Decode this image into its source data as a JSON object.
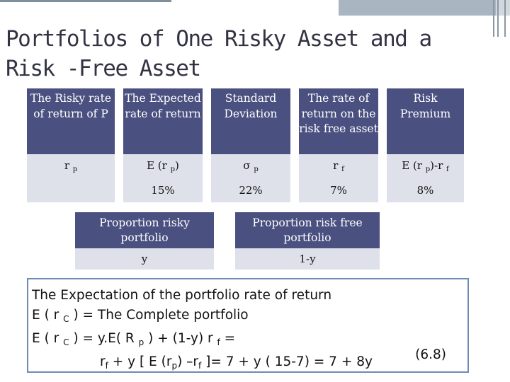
{
  "title": "Portfolios of One Risky Asset and a Risk -Free Asset",
  "top_table": {
    "headers": [
      "The Risky rate of return of P",
      "The Expected rate of return",
      "Standard Deviation",
      "The rate of return on the risk free asset",
      "Risk Premium"
    ],
    "symbols": {
      "risky": {
        "base": "r",
        "sub": "p"
      },
      "expected": {
        "base": "E (r",
        "sub": "p",
        "tail": ")"
      },
      "sd": {
        "base": "σ",
        "sub": "p"
      },
      "rf": {
        "base": "r",
        "sub": "f"
      },
      "premium": {
        "base": "E (r",
        "sub": "p",
        "mid": ")-r",
        "sub2": "f"
      }
    },
    "values": [
      "",
      "15%",
      "22%",
      "7%",
      "8%"
    ]
  },
  "bottom_table": {
    "headers": [
      "Proportion risky portfolio",
      "Proportion risk free portfolio"
    ],
    "values": [
      "y",
      "1-y"
    ]
  },
  "text_box": {
    "line1": "The Expectation of  the portfolio rate of return",
    "line2": {
      "a": "E ( r",
      "sub": "C",
      "b": ") = The Complete portfolio"
    },
    "line3": {
      "a": "E ( r",
      "sub": "C",
      "b": ") = y.E( R",
      "sub2": "p",
      "c": ")  + (1-y) r",
      "sub3": "f",
      "d": "="
    },
    "line4": {
      "a": "r",
      "sub": "f",
      "b": "+ y [ E (r",
      "sub2": "p",
      "c": ") –r",
      "sub3": "f",
      "d": "]= 7 + y ( 15-7) = 7 + 8y"
    },
    "equation_number": "(6.8)"
  }
}
